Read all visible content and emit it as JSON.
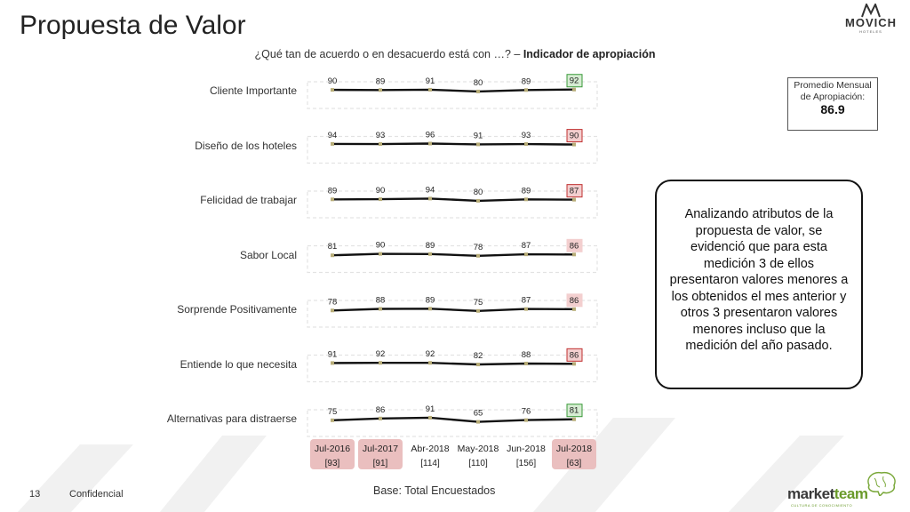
{
  "page": {
    "title": "Propuesta de Valor",
    "subtitle_question": "¿Qué tan de acuerdo o en desacuerdo está con …? – ",
    "subtitle_bold": "Indicador de apropiación",
    "page_number": "13",
    "confidential": "Confidencial",
    "base_text": "Base: Total Encuestados"
  },
  "logo": {
    "brand": "MOVICH",
    "sub": "HOTELES"
  },
  "footer_logo": {
    "name_part1": "market",
    "name_part2": "team",
    "tagline": "CULTURA DE CONOCIMIENTO"
  },
  "average_box": {
    "label": "Promedio Mensual de Apropiación:",
    "value": "86.9"
  },
  "note": {
    "text": "Analizando atributos de la propuesta de valor, se evidenció que para esta medición 3 de ellos presentaron valores menores a los obtenidos el mes anterior y otros 3 presentaron valores menores incluso que la medición del año pasado."
  },
  "colors": {
    "line": "#111111",
    "marker": "#b8ad78",
    "green_box_fill": "#d6ecd2",
    "green_box_border": "#3a9a3a",
    "red_box_fill": "#f3cfcf",
    "red_box_border": "#c03030",
    "period_highlight": "#eabfbf"
  },
  "chart_data": {
    "type": "line",
    "categories": [
      "Jul-2016",
      "Jul-2017",
      "Abr-2018",
      "May-2018",
      "Jun-2018",
      "Jul-2018"
    ],
    "bases": [
      "[93]",
      "[91]",
      "[114]",
      "[110]",
      "[156]",
      "[63]"
    ],
    "highlighted_periods": [
      0,
      1,
      5
    ],
    "series": [
      {
        "name": "Cliente Importante",
        "values": [
          90,
          89,
          91,
          80,
          89,
          92
        ],
        "last_status": "up"
      },
      {
        "name": "Diseño de los hoteles",
        "values": [
          94,
          93,
          96,
          91,
          93,
          90
        ],
        "last_status": "down"
      },
      {
        "name": "Felicidad de trabajar",
        "values": [
          89,
          90,
          94,
          80,
          89,
          87
        ],
        "last_status": "down"
      },
      {
        "name": "Sabor Local",
        "values": [
          81,
          90,
          89,
          78,
          87,
          86
        ],
        "last_status": "down-light"
      },
      {
        "name": "Sorprende Positivamente",
        "values": [
          78,
          88,
          89,
          75,
          87,
          86
        ],
        "last_status": "down-light"
      },
      {
        "name": "Entiende lo que necesita",
        "values": [
          91,
          92,
          92,
          82,
          88,
          86
        ],
        "last_status": "down"
      },
      {
        "name": "Alternativas para distraerse",
        "values": [
          75,
          86,
          91,
          65,
          76,
          81
        ],
        "last_status": "up"
      }
    ]
  }
}
